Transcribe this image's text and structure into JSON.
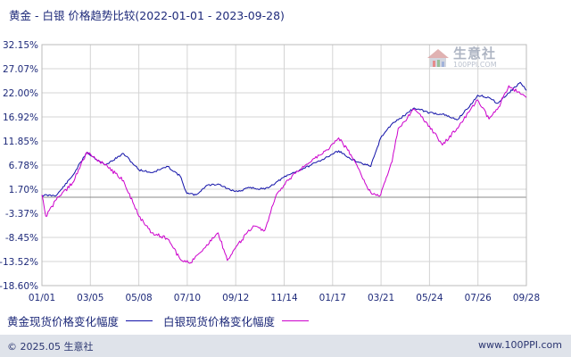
{
  "chart_data": {
    "type": "line",
    "title": "黄金 - 白银 价格趋势比较(2022-01-01 - 2023-09-28)",
    "ylim": [
      -18.6,
      32.15
    ],
    "yticks": [
      "32.15%",
      "27.07%",
      "22.00%",
      "16.92%",
      "11.85%",
      "6.78%",
      "1.70%",
      "-3.37%",
      "-8.45%",
      "-13.52%",
      "-18.60%"
    ],
    "xticks": [
      "01/01",
      "03/05",
      "05/08",
      "07/10",
      "09/12",
      "11/14",
      "01/17",
      "03/21",
      "05/24",
      "07/26",
      "09/28"
    ],
    "grid": true,
    "legend_position": "bottom",
    "series": [
      {
        "name": "黄金现货价格变化幅度",
        "color": "#1010a8",
        "x": [
          "2022-01-01",
          "2022-01-20",
          "2022-02-10",
          "2022-03-01",
          "2022-03-09",
          "2022-03-25",
          "2022-04-18",
          "2022-05-08",
          "2022-05-25",
          "2022-06-15",
          "2022-07-01",
          "2022-07-10",
          "2022-07-22",
          "2022-08-05",
          "2022-08-20",
          "2022-09-05",
          "2022-09-15",
          "2022-09-30",
          "2022-10-20",
          "2022-11-03",
          "2022-11-14",
          "2022-12-01",
          "2022-12-20",
          "2023-01-10",
          "2023-01-25",
          "2023-02-10",
          "2023-02-24",
          "2023-03-08",
          "2023-03-21",
          "2023-04-05",
          "2023-04-13",
          "2023-05-04",
          "2023-05-24",
          "2023-06-10",
          "2023-06-29",
          "2023-07-20",
          "2023-07-26",
          "2023-08-10",
          "2023-08-21",
          "2023-09-05",
          "2023-09-20",
          "2023-09-28"
        ],
        "y": [
          0.4,
          0.4,
          4.5,
          9.5,
          8.5,
          6.8,
          9.2,
          5.8,
          5.2,
          6.5,
          4.5,
          0.8,
          0.5,
          2.5,
          2.8,
          1.5,
          1.2,
          2.0,
          1.7,
          3.0,
          4.2,
          5.5,
          6.8,
          8.5,
          9.8,
          8.0,
          7.2,
          6.5,
          12.5,
          15.5,
          16.3,
          18.8,
          17.8,
          17.5,
          16.3,
          20.0,
          21.5,
          21.0,
          19.8,
          22.0,
          24.2,
          22.5
        ]
      },
      {
        "name": "白银现货价格变化幅度",
        "color": "#cc00cc",
        "x": [
          "2022-01-01",
          "2022-01-06",
          "2022-01-20",
          "2022-02-10",
          "2022-03-01",
          "2022-03-09",
          "2022-03-25",
          "2022-04-18",
          "2022-05-08",
          "2022-05-25",
          "2022-06-15",
          "2022-07-01",
          "2022-07-15",
          "2022-08-05",
          "2022-08-20",
          "2022-09-01",
          "2022-09-10",
          "2022-09-20",
          "2022-10-05",
          "2022-10-20",
          "2022-11-03",
          "2022-11-14",
          "2022-12-01",
          "2022-12-20",
          "2023-01-10",
          "2023-01-25",
          "2023-02-10",
          "2023-02-24",
          "2023-03-08",
          "2023-03-21",
          "2023-04-05",
          "2023-04-13",
          "2023-05-04",
          "2023-05-24",
          "2023-06-10",
          "2023-06-29",
          "2023-07-15",
          "2023-07-26",
          "2023-08-10",
          "2023-08-21",
          "2023-09-05",
          "2023-09-20",
          "2023-09-28"
        ],
        "y": [
          0.5,
          -4.0,
          -0.5,
          3.0,
          9.5,
          8.5,
          6.8,
          3.5,
          -4.0,
          -7.5,
          -8.8,
          -13.0,
          -13.8,
          -10.0,
          -7.5,
          -13.3,
          -11.0,
          -9.0,
          -6.0,
          -7.0,
          0.0,
          2.5,
          5.5,
          7.5,
          10.0,
          12.5,
          9.0,
          4.5,
          1.0,
          0.5,
          7.5,
          14.5,
          18.5,
          15.0,
          11.0,
          14.5,
          18.0,
          20.5,
          16.5,
          18.5,
          23.5,
          21.8,
          21.0
        ]
      }
    ]
  },
  "watermark": {
    "brand": "生意社",
    "url": "100PPI.COM"
  },
  "footer": {
    "copyright": "© 2025.05 生意社",
    "website": "www.100PPI.com"
  }
}
